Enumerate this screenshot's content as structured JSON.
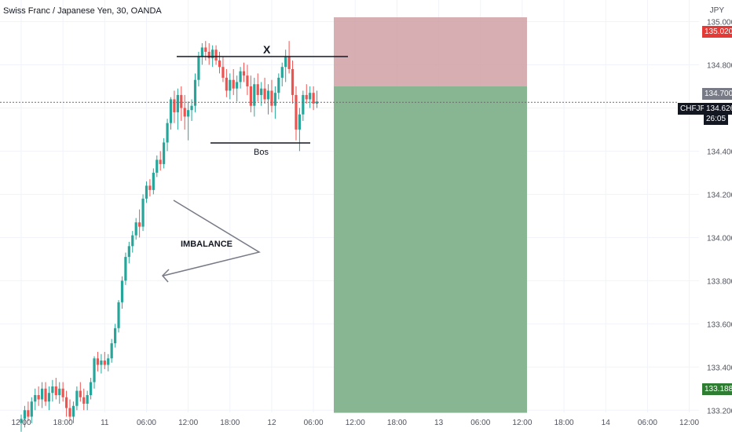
{
  "header": {
    "title": "Swiss Franc / Japanese Yen, 30, OANDA"
  },
  "chart_data": {
    "type": "candlestick",
    "title": "Swiss Franc / Japanese Yen, 30, OANDA",
    "currency": "JPY",
    "symbol": "CHFJPY",
    "ylim": [
      133.19,
      135.1
    ],
    "y_ticks": [
      "135.000",
      "134.800",
      "134.600",
      "134.400",
      "134.200",
      "134.000",
      "133.800",
      "133.600",
      "133.400",
      "133.200"
    ],
    "x_ticks": [
      "12:00",
      "18:00",
      "11",
      "06:00",
      "12:00",
      "18:00",
      "12",
      "06:00",
      "12:00",
      "18:00",
      "13",
      "06:00",
      "12:00",
      "18:00",
      "14",
      "06:00",
      "12:00"
    ],
    "x_tick_bar_index": [
      0,
      12,
      24,
      36,
      48,
      60,
      72,
      84,
      96,
      108,
      120,
      132,
      144,
      156,
      168,
      180,
      192
    ],
    "candles": [
      [
        133.14,
        133.18,
        133.1,
        133.16
      ],
      [
        133.16,
        133.22,
        133.12,
        133.2
      ],
      [
        133.2,
        133.24,
        133.15,
        133.17
      ],
      [
        133.17,
        133.26,
        133.14,
        133.24
      ],
      [
        133.24,
        133.3,
        133.2,
        133.27
      ],
      [
        133.27,
        133.31,
        133.22,
        133.25
      ],
      [
        133.25,
        133.33,
        133.21,
        133.3
      ],
      [
        133.3,
        133.33,
        133.22,
        133.24
      ],
      [
        133.24,
        133.31,
        133.2,
        133.28
      ],
      [
        133.28,
        133.34,
        133.24,
        133.31
      ],
      [
        133.31,
        133.35,
        133.25,
        133.27
      ],
      [
        133.27,
        133.33,
        133.23,
        133.3
      ],
      [
        133.3,
        133.33,
        133.24,
        133.26
      ],
      [
        133.26,
        133.29,
        133.17,
        133.21
      ],
      [
        133.21,
        133.25,
        133.15,
        133.17
      ],
      [
        133.17,
        133.24,
        133.14,
        133.22
      ],
      [
        133.22,
        133.31,
        133.2,
        133.29
      ],
      [
        133.29,
        133.33,
        133.24,
        133.26
      ],
      [
        133.26,
        133.3,
        133.2,
        133.23
      ],
      [
        133.23,
        133.29,
        133.2,
        133.27
      ],
      [
        133.27,
        133.35,
        133.25,
        133.33
      ],
      [
        133.33,
        133.45,
        133.3,
        133.44
      ],
      [
        133.44,
        133.47,
        133.38,
        133.41
      ],
      [
        133.41,
        133.46,
        133.37,
        133.43
      ],
      [
        133.43,
        133.47,
        133.39,
        133.41
      ],
      [
        133.41,
        133.46,
        133.38,
        133.44
      ],
      [
        133.44,
        133.53,
        133.42,
        133.51
      ],
      [
        133.51,
        133.6,
        133.49,
        133.58
      ],
      [
        133.58,
        133.71,
        133.56,
        133.7
      ],
      [
        133.7,
        133.82,
        133.67,
        133.8
      ],
      [
        133.8,
        133.93,
        133.78,
        133.91
      ],
      [
        133.91,
        133.98,
        133.88,
        133.96
      ],
      [
        133.96,
        134.03,
        133.93,
        134.01
      ],
      [
        134.01,
        134.09,
        133.99,
        134.07
      ],
      [
        134.07,
        134.13,
        134.0,
        134.05
      ],
      [
        134.05,
        134.2,
        134.03,
        134.18
      ],
      [
        134.18,
        134.26,
        134.16,
        134.24
      ],
      [
        134.24,
        134.27,
        134.19,
        134.22
      ],
      [
        134.22,
        134.32,
        134.2,
        134.3
      ],
      [
        134.3,
        134.38,
        134.28,
        134.36
      ],
      [
        134.36,
        134.4,
        134.31,
        134.34
      ],
      [
        134.34,
        134.46,
        134.32,
        134.44
      ],
      [
        134.44,
        134.55,
        134.4,
        134.53
      ],
      [
        134.53,
        134.65,
        134.5,
        134.64
      ],
      [
        134.64,
        134.68,
        134.53,
        134.58
      ],
      [
        134.58,
        134.69,
        134.5,
        134.66
      ],
      [
        134.66,
        134.7,
        134.54,
        134.6
      ],
      [
        134.6,
        134.66,
        134.5,
        134.56
      ],
      [
        134.56,
        134.63,
        134.45,
        134.59
      ],
      [
        134.59,
        134.64,
        134.54,
        134.61
      ],
      [
        134.61,
        134.76,
        134.58,
        134.73
      ],
      [
        134.73,
        134.86,
        134.7,
        134.84
      ],
      [
        134.84,
        134.9,
        134.8,
        134.88
      ],
      [
        134.88,
        134.91,
        134.82,
        134.86
      ],
      [
        134.86,
        134.9,
        134.8,
        134.83
      ],
      [
        134.83,
        134.89,
        134.79,
        134.87
      ],
      [
        134.87,
        134.89,
        134.8,
        134.82
      ],
      [
        134.82,
        134.86,
        134.76,
        134.79
      ],
      [
        134.79,
        134.84,
        134.72,
        134.74
      ],
      [
        134.74,
        134.78,
        134.65,
        134.68
      ],
      [
        134.68,
        134.76,
        134.64,
        134.73
      ],
      [
        134.73,
        134.78,
        134.66,
        134.69
      ],
      [
        134.69,
        134.75,
        134.63,
        134.72
      ],
      [
        134.72,
        134.79,
        134.69,
        134.77
      ],
      [
        134.77,
        134.81,
        134.72,
        134.75
      ],
      [
        134.75,
        134.8,
        134.66,
        134.7
      ],
      [
        134.7,
        134.75,
        134.58,
        134.61
      ],
      [
        134.61,
        134.74,
        134.56,
        134.71
      ],
      [
        134.71,
        134.76,
        134.63,
        134.66
      ],
      [
        134.66,
        134.72,
        134.61,
        134.69
      ],
      [
        134.69,
        134.74,
        134.62,
        134.64
      ],
      [
        134.64,
        134.71,
        134.57,
        134.68
      ],
      [
        134.68,
        134.73,
        134.58,
        134.61
      ],
      [
        134.61,
        134.7,
        134.55,
        134.67
      ],
      [
        134.67,
        134.76,
        134.64,
        134.74
      ],
      [
        134.74,
        134.81,
        134.7,
        134.79
      ],
      [
        134.79,
        134.87,
        134.72,
        134.84
      ],
      [
        134.84,
        134.91,
        134.76,
        134.78
      ],
      [
        134.78,
        134.82,
        134.62,
        134.66
      ],
      [
        134.66,
        134.7,
        134.45,
        134.5
      ],
      [
        134.5,
        134.6,
        134.4,
        134.57
      ],
      [
        134.57,
        134.68,
        134.54,
        134.66
      ],
      [
        134.66,
        134.71,
        134.62,
        134.64
      ],
      [
        134.64,
        134.7,
        134.6,
        134.67
      ],
      [
        134.67,
        134.7,
        134.59,
        134.62
      ],
      [
        134.62,
        134.68,
        134.6,
        134.63
      ]
    ],
    "lines": {
      "last_price": 134.626,
      "top_marker": 135.02,
      "target_marker": 134.7,
      "bottom_marker": 133.188
    },
    "annotations": {
      "top_mark": "X",
      "bos_label": "Bos",
      "imbalance_label": "IMBALANCE"
    },
    "price_tags": {
      "top": "135.020",
      "target": "134.700",
      "symbol": "CHFJPY",
      "last": "134.626",
      "timer": "26:05",
      "bottom": "133.188"
    },
    "colors": {
      "up": "#26a69a",
      "down": "#ef5350",
      "risk_zone": "#d0a0a3",
      "profit_zone": "#83b28c",
      "red_tag": "#e53935",
      "green_tag": "#2e7d32",
      "gray_tag": "#787b86",
      "black_tag": "#131722"
    }
  }
}
